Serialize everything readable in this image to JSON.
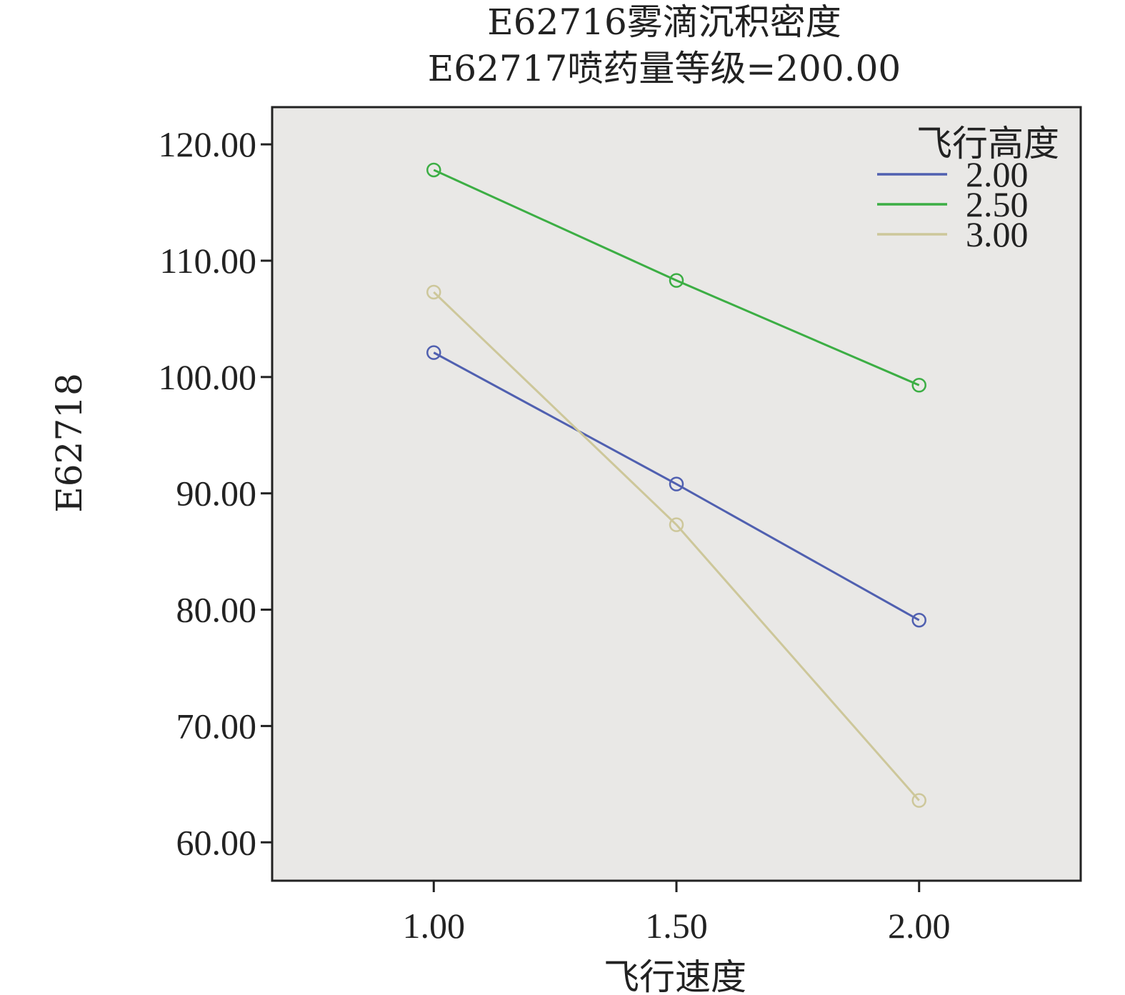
{
  "chart_data": {
    "type": "line",
    "title": "E62716雾滴沉积密度",
    "subtitle": "E62717喷药量等级=200.00",
    "xlabel": "飞行速度",
    "ylabel": "E62718",
    "x": [
      1.0,
      1.5,
      2.0
    ],
    "x_tick_labels": [
      "1.00",
      "1.50",
      "2.00"
    ],
    "y_tick_labels": [
      "60.00",
      "70.00",
      "80.00",
      "90.00",
      "100.00",
      "110.00",
      "120.00"
    ],
    "y_ticks": [
      60,
      70,
      80,
      90,
      100,
      110,
      120
    ],
    "xlim": [
      0.667,
      2.333
    ],
    "ylim": [
      56.7,
      123.2
    ],
    "grid": false,
    "legend": {
      "title": "飞行高度",
      "position": "top-right"
    },
    "series": [
      {
        "name": "2.00",
        "values": [
          102.1,
          90.8,
          79.1
        ],
        "color": "#5060b0"
      },
      {
        "name": "2.50",
        "values": [
          117.8,
          108.3,
          99.3
        ],
        "color": "#3cae44"
      },
      {
        "name": "3.00",
        "values": [
          107.3,
          87.3,
          63.6
        ],
        "color": "#cdc79a"
      }
    ],
    "plot_background": "#e9e8e6"
  }
}
